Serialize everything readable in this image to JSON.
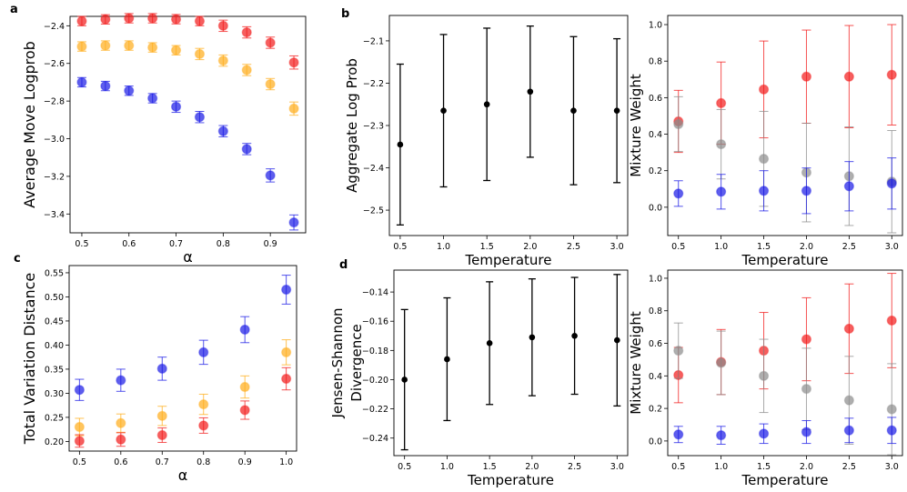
{
  "panel_labels": [
    "a",
    "b",
    "c",
    "d"
  ],
  "colors": {
    "red": "#f21a1a",
    "orange": "#ffad1a",
    "blue": "#1a1ae6",
    "gray": "#8c8c8c",
    "black": "#000000"
  },
  "chart_data": [
    {
      "id": "a",
      "type": "scatter",
      "xlabel": "α",
      "ylabel": "Average Move Logprob",
      "xlim": [
        0.475,
        0.975
      ],
      "ylim": [
        -3.5,
        -2.35
      ],
      "xticks": [
        0.5,
        0.6,
        0.7,
        0.8,
        0.9
      ],
      "xtick_labels": [
        "0.5",
        "0.6",
        "0.7",
        "0.8",
        "0.9"
      ],
      "yticks": [
        -3.4,
        -3.2,
        -3.0,
        -2.8,
        -2.6,
        -2.4
      ],
      "ytick_labels": [
        "−3.4",
        "−3.2",
        "−3.0",
        "−2.8",
        "−2.6",
        "−2.4"
      ],
      "x": [
        0.5,
        0.55,
        0.6,
        0.65,
        0.7,
        0.75,
        0.8,
        0.85,
        0.9,
        0.95
      ],
      "series": [
        {
          "color": "red",
          "values": [
            -2.375,
            -2.366,
            -2.36,
            -2.36,
            -2.365,
            -2.375,
            -2.4,
            -2.435,
            -2.49,
            -2.595
          ],
          "err": [
            0.025,
            0.025,
            0.025,
            0.025,
            0.025,
            0.025,
            0.03,
            0.03,
            0.03,
            0.035
          ]
        },
        {
          "color": "orange",
          "values": [
            -2.51,
            -2.505,
            -2.505,
            -2.515,
            -2.53,
            -2.55,
            -2.585,
            -2.635,
            -2.71,
            -2.84
          ],
          "err": [
            0.025,
            0.025,
            0.025,
            0.025,
            0.025,
            0.03,
            0.03,
            0.03,
            0.03,
            0.035
          ]
        },
        {
          "color": "blue",
          "values": [
            -2.7,
            -2.72,
            -2.745,
            -2.785,
            -2.83,
            -2.885,
            -2.96,
            -3.055,
            -3.195,
            -3.445
          ],
          "err": [
            0.025,
            0.025,
            0.025,
            0.025,
            0.03,
            0.03,
            0.03,
            0.03,
            0.035,
            0.04
          ]
        }
      ]
    },
    {
      "id": "b-left",
      "type": "scatter",
      "xlabel": "Temperature",
      "ylabel": "Aggregate Log Prob",
      "xlim": [
        0.375,
        3.125
      ],
      "ylim": [
        -2.56,
        -2.04
      ],
      "xticks": [
        0.5,
        1.0,
        1.5,
        2.0,
        2.5,
        3.0
      ],
      "xtick_labels": [
        "0.5",
        "1.0",
        "1.5",
        "2.0",
        "2.5",
        "3.0"
      ],
      "yticks": [
        -2.5,
        -2.4,
        -2.3,
        -2.2,
        -2.1
      ],
      "ytick_labels": [
        "−2.5",
        "−2.4",
        "−2.3",
        "−2.2",
        "−2.1"
      ],
      "x": [
        0.5,
        1.0,
        1.5,
        2.0,
        2.5,
        3.0
      ],
      "series": [
        {
          "color": "black",
          "values": [
            -2.345,
            -2.265,
            -2.25,
            -2.22,
            -2.265,
            -2.265
          ],
          "err": [
            0.19,
            0.18,
            0.18,
            0.155,
            0.175,
            0.17
          ]
        }
      ]
    },
    {
      "id": "b-right",
      "type": "scatter",
      "xlabel": "Temperature",
      "ylabel": "Mixture Weight",
      "xlim": [
        0.375,
        3.125
      ],
      "ylim": [
        -0.155,
        1.05
      ],
      "xticks": [
        0.5,
        1.0,
        1.5,
        2.0,
        2.5,
        3.0
      ],
      "xtick_labels": [
        "0.5",
        "1.0",
        "1.5",
        "2.0",
        "2.5",
        "3.0"
      ],
      "yticks": [
        0.0,
        0.2,
        0.4,
        0.6,
        0.8,
        1.0
      ],
      "ytick_labels": [
        "0.0",
        "0.2",
        "0.4",
        "0.6",
        "0.8",
        "1.0"
      ],
      "x": [
        0.5,
        1.0,
        1.5,
        2.0,
        2.5,
        3.0
      ],
      "series": [
        {
          "color": "red",
          "values": [
            0.47,
            0.57,
            0.645,
            0.715,
            0.715,
            0.725
          ],
          "err": [
            0.17,
            0.225,
            0.265,
            0.255,
            0.28,
            0.275
          ]
        },
        {
          "color": "gray",
          "values": [
            0.455,
            0.345,
            0.265,
            0.19,
            0.17,
            0.14
          ],
          "err": [
            0.15,
            0.19,
            0.26,
            0.27,
            0.27,
            0.28
          ]
        },
        {
          "color": "blue",
          "values": [
            0.075,
            0.085,
            0.09,
            0.09,
            0.115,
            0.13
          ],
          "err": [
            0.07,
            0.095,
            0.11,
            0.125,
            0.135,
            0.14
          ]
        }
      ]
    },
    {
      "id": "c",
      "type": "scatter",
      "xlabel": "α",
      "ylabel": "Total Variation Distance",
      "xlim": [
        0.475,
        1.025
      ],
      "ylim": [
        0.18,
        0.565
      ],
      "xticks": [
        0.5,
        0.6,
        0.7,
        0.8,
        0.9,
        1.0
      ],
      "xtick_labels": [
        "0.5",
        "0.6",
        "0.7",
        "0.8",
        "0.9",
        "1.0"
      ],
      "yticks": [
        0.2,
        0.25,
        0.3,
        0.35,
        0.4,
        0.45,
        0.5,
        0.55
      ],
      "ytick_labels": [
        "0.20",
        "0.25",
        "0.30",
        "0.35",
        "0.40",
        "0.45",
        "0.50",
        "0.55"
      ],
      "x": [
        0.5,
        0.6,
        0.7,
        0.8,
        0.9,
        1.0
      ],
      "series": [
        {
          "color": "blue",
          "values": [
            0.307,
            0.327,
            0.351,
            0.385,
            0.432,
            0.515
          ],
          "err": [
            0.022,
            0.023,
            0.024,
            0.025,
            0.027,
            0.03
          ]
        },
        {
          "color": "orange",
          "values": [
            0.23,
            0.238,
            0.253,
            0.277,
            0.313,
            0.385
          ],
          "err": [
            0.018,
            0.019,
            0.02,
            0.021,
            0.023,
            0.026
          ]
        },
        {
          "color": "red",
          "values": [
            0.201,
            0.204,
            0.213,
            0.233,
            0.265,
            0.33
          ],
          "err": [
            0.013,
            0.014,
            0.015,
            0.016,
            0.019,
            0.023
          ]
        }
      ]
    },
    {
      "id": "d-left",
      "type": "scatter",
      "xlabel": "Temperature",
      "ylabel": "Jensen-Shannon\nDivergence",
      "xlim": [
        0.375,
        3.125
      ],
      "ylim": [
        -0.252,
        -0.125
      ],
      "xticks": [
        0.5,
        1.0,
        1.5,
        2.0,
        2.5,
        3.0
      ],
      "xtick_labels": [
        "0.5",
        "1.0",
        "1.5",
        "2.0",
        "2.5",
        "3.0"
      ],
      "yticks": [
        -0.24,
        -0.22,
        -0.2,
        -0.18,
        -0.16,
        -0.14
      ],
      "ytick_labels": [
        "−0.24",
        "−0.22",
        "−0.20",
        "−0.18",
        "−0.16",
        "−0.14"
      ],
      "x": [
        0.5,
        1.0,
        1.5,
        2.0,
        2.5,
        3.0
      ],
      "series": [
        {
          "color": "black",
          "values": [
            -0.2,
            -0.186,
            -0.175,
            -0.171,
            -0.17,
            -0.173
          ],
          "err": [
            0.048,
            0.042,
            0.042,
            0.04,
            0.04,
            0.045
          ]
        }
      ]
    },
    {
      "id": "d-right",
      "type": "scatter",
      "xlabel": "Temperature",
      "ylabel": "Mixture Weight",
      "xlim": [
        0.375,
        3.125
      ],
      "ylim": [
        -0.09,
        1.05
      ],
      "xticks": [
        0.5,
        1.0,
        1.5,
        2.0,
        2.5,
        3.0
      ],
      "xtick_labels": [
        "0.5",
        "1.0",
        "1.5",
        "2.0",
        "2.5",
        "3.0"
      ],
      "yticks": [
        0.0,
        0.2,
        0.4,
        0.6,
        0.8,
        1.0
      ],
      "ytick_labels": [
        "0.0",
        "0.2",
        "0.4",
        "0.6",
        "0.8",
        "1.0"
      ],
      "x": [
        0.5,
        1.0,
        1.5,
        2.0,
        2.5,
        3.0
      ],
      "series": [
        {
          "color": "red",
          "values": [
            0.405,
            0.485,
            0.555,
            0.625,
            0.69,
            0.74
          ],
          "err": [
            0.17,
            0.2,
            0.235,
            0.255,
            0.275,
            0.29
          ]
        },
        {
          "color": "gray",
          "values": [
            0.555,
            0.48,
            0.4,
            0.32,
            0.25,
            0.195
          ],
          "err": [
            0.17,
            0.195,
            0.225,
            0.25,
            0.27,
            0.28
          ]
        },
        {
          "color": "blue",
          "values": [
            0.04,
            0.035,
            0.045,
            0.055,
            0.065,
            0.065
          ],
          "err": [
            0.05,
            0.055,
            0.06,
            0.07,
            0.075,
            0.08
          ]
        }
      ]
    }
  ]
}
